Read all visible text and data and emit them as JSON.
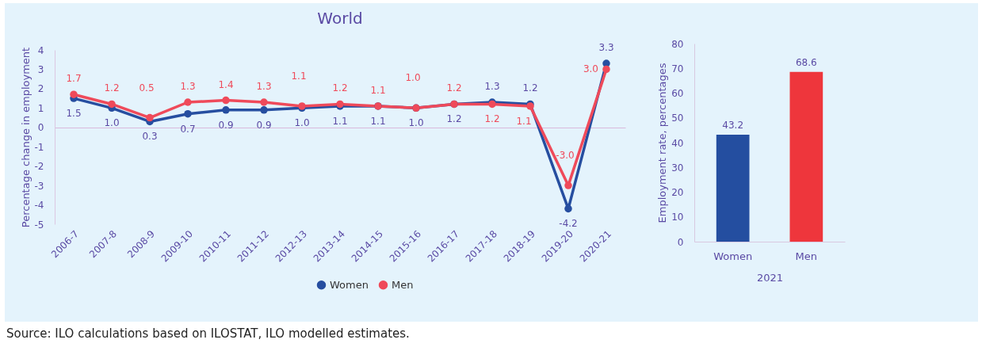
{
  "chart_data": [
    {
      "type": "line",
      "title": "World",
      "ylabel": "Percentage change in employment",
      "categories": [
        "2006-7",
        "2007-8",
        "2008-9",
        "2009-10",
        "2010-11",
        "2011-12",
        "2012-13",
        "2013-14",
        "2014-15",
        "2015-16",
        "2016-17",
        "2017-18",
        "2018-19",
        "2019-20",
        "2020-21"
      ],
      "series": [
        {
          "name": "Women",
          "color": "#264ea0",
          "values": [
            1.5,
            1.0,
            0.3,
            0.7,
            0.9,
            0.9,
            1.0,
            1.1,
            1.1,
            1.0,
            1.2,
            1.3,
            1.2,
            -4.2,
            3.3
          ],
          "value_labels": [
            "1.5",
            "1.0",
            "0.3",
            "0.7",
            "0.9",
            "0.9",
            "1.0",
            "1.1",
            "1.1",
            "1.0",
            "1.2",
            "1.3",
            "1.2",
            "-4.2",
            "3.3"
          ]
        },
        {
          "name": "Men",
          "color": "#ef4a5a",
          "values": [
            1.7,
            1.2,
            0.5,
            1.3,
            1.4,
            1.3,
            1.1,
            1.2,
            1.1,
            1.0,
            1.2,
            1.2,
            1.1,
            -3.0,
            3.0
          ],
          "value_labels": [
            "1.7",
            "1.2",
            "0.5",
            "1.3",
            "1.4",
            "1.3",
            "1.1",
            "1.2",
            "1.1",
            "1.0",
            "1.2",
            "1.2",
            "1.1",
            "-3.0",
            "3.0"
          ]
        }
      ],
      "ylim": [
        -5,
        4
      ],
      "yticks": [
        -5,
        -4,
        -3,
        -2,
        -1,
        0,
        1,
        2,
        3,
        4
      ],
      "data_labels": true,
      "legend": "bottom",
      "marker": "circle",
      "annotations": [
        "Source: ILO calculations based on ILOSTAT, ILO modelled estimates."
      ]
    },
    {
      "type": "bar",
      "ylabel": "Employment rate, percentages",
      "xlabel": "2021",
      "categories": [
        "Women",
        "Men"
      ],
      "values": [
        43.2,
        68.6
      ],
      "colors": [
        "#244ea0",
        "#ee363c"
      ],
      "ylim": [
        0,
        80
      ],
      "yticks": [
        0,
        10,
        20,
        30,
        40,
        50,
        60,
        70,
        80
      ],
      "data_labels": true
    }
  ]
}
